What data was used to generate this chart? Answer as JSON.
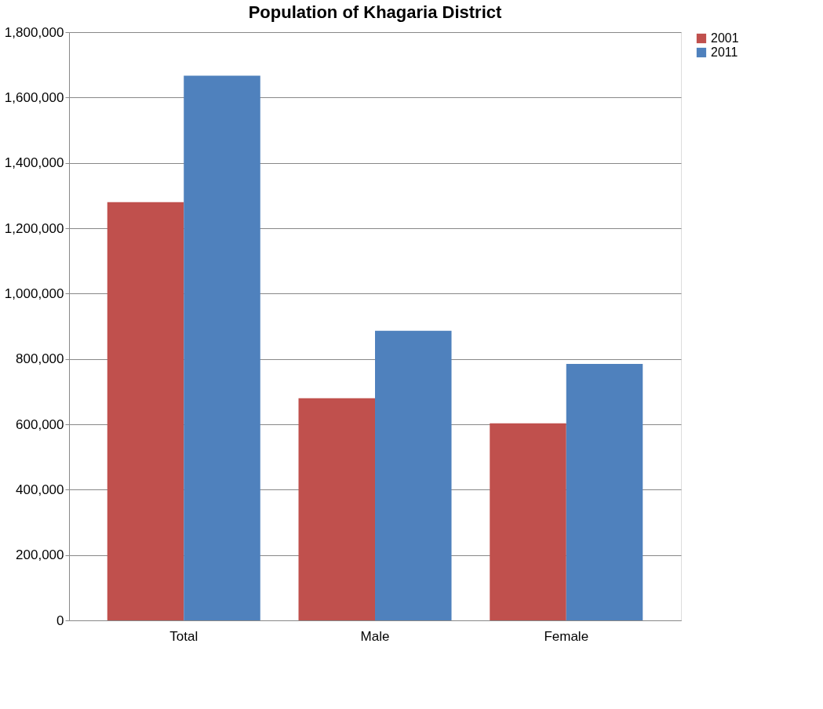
{
  "chart_data": {
    "type": "bar",
    "title": "Population of Khagaria District",
    "categories": [
      "Total",
      "Male",
      "Female"
    ],
    "series": [
      {
        "name": "2001",
        "color": "#c0504d",
        "values": [
          1280000,
          680000,
          603000
        ]
      },
      {
        "name": "2011",
        "color": "#4f81bd",
        "values": [
          1667000,
          886000,
          785000
        ]
      }
    ],
    "ylim": [
      0,
      1800000
    ],
    "yticks": [
      0,
      {
        "value": 200000,
        "label": "200,000"
      },
      {
        "value": 400000,
        "label": "400,000"
      },
      {
        "value": 600000,
        "label": "600,000"
      },
      {
        "value": 800000,
        "label": "800,000"
      },
      {
        "value": 1000000,
        "label": "1,000,000"
      },
      {
        "value": 1200000,
        "label": "1,200,000"
      },
      {
        "value": 1400000,
        "label": "1,400,000"
      },
      {
        "value": 1600000,
        "label": "1,600,000"
      },
      {
        "value": 1800000,
        "label": "1,800,000"
      }
    ],
    "grid": "y",
    "legend": "right"
  }
}
